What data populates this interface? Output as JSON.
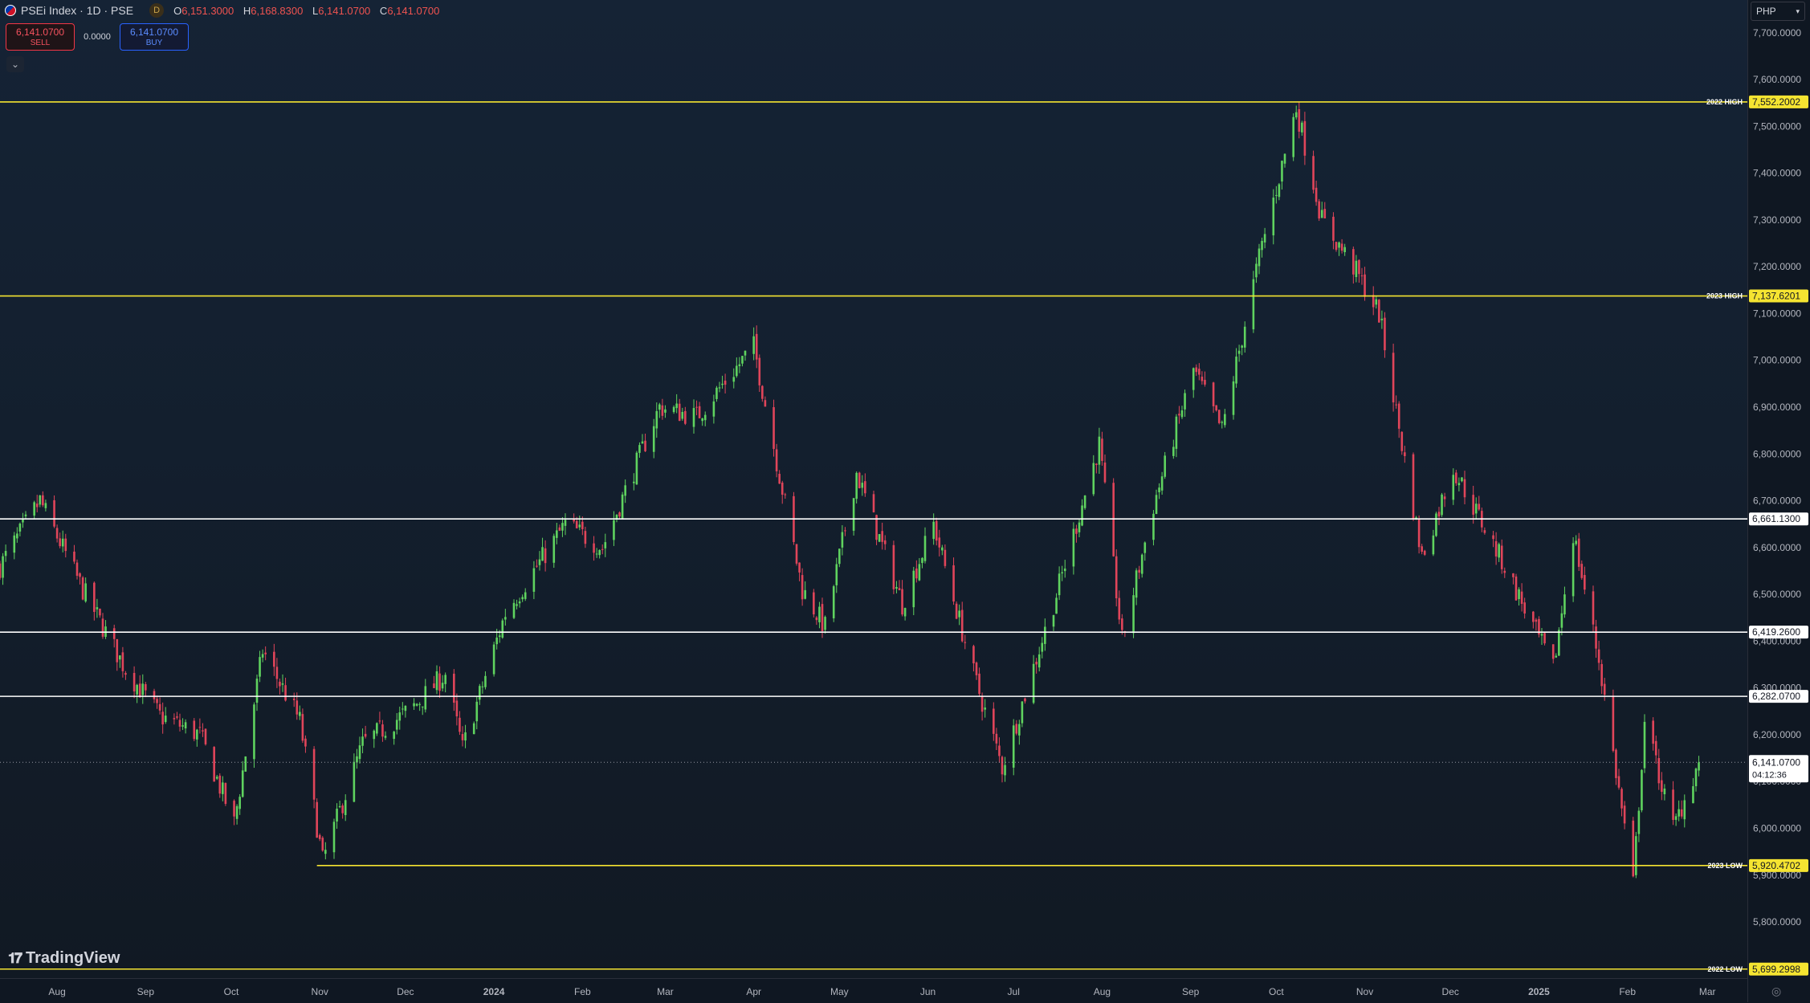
{
  "header": {
    "symbol_title": "PSEi Index · 1D · PSE",
    "interval_badge": "D",
    "ohlc": [
      {
        "key": "O",
        "value": "6,151.3000"
      },
      {
        "key": "H",
        "value": "6,168.8300"
      },
      {
        "key": "L",
        "value": "6,141.0700"
      },
      {
        "key": "C",
        "value": "6,141.0700"
      }
    ]
  },
  "trading": {
    "sell_price": "6,141.0700",
    "sell_label": "SELL",
    "spread": "0.0000",
    "buy_price": "6,141.0700",
    "buy_label": "BUY"
  },
  "currency": "PHP",
  "brand": "TradingView",
  "colors": {
    "up": "#5fd35f",
    "down": "#e0455a",
    "yellow_level": "#f5e431",
    "white_level": "#ffffff"
  },
  "chart_data": {
    "type": "candlestick",
    "ylim": [
      5680,
      7770
    ],
    "y_ticks": [
      "7,700.0000",
      "7,600.0000",
      "7,500.0000",
      "7,400.0000",
      "7,300.0000",
      "7,200.0000",
      "7,100.0000",
      "7,000.0000",
      "6,900.0000",
      "6,800.0000",
      "6,700.0000",
      "6,600.0000",
      "6,500.0000",
      "6,400.0000",
      "6,300.0000",
      "6,200.0000",
      "6,100.0000",
      "6,000.0000",
      "5,900.0000",
      "5,800.0000"
    ],
    "x_labels": [
      "Aug",
      "Sep",
      "Oct",
      "Nov",
      "Dec",
      "2024",
      "Feb",
      "Mar",
      "Apr",
      "May",
      "Jun",
      "Jul",
      "Aug",
      "Sep",
      "Oct",
      "Nov",
      "Dec",
      "2025",
      "Feb",
      "Mar"
    ],
    "x_label_dates": [
      "2023-08-01",
      "2023-09-01",
      "2023-10-01",
      "2023-11-01",
      "2023-12-01",
      "2024-01-01",
      "2024-02-01",
      "2024-03-01",
      "2024-04-01",
      "2024-05-01",
      "2024-06-01",
      "2024-07-01",
      "2024-08-01",
      "2024-09-01",
      "2024-10-01",
      "2024-11-01",
      "2024-12-01",
      "2025-01-01",
      "2025-02-01",
      "2025-03-01"
    ],
    "x_range": [
      "2023-07-12",
      "2025-03-15"
    ],
    "levels": [
      {
        "label": "2022 HIGH",
        "value": 7552.2002,
        "value_text": "7,552.2002",
        "color": "yellow",
        "start": "2023-07-12"
      },
      {
        "label": "2023 HIGH",
        "value": 7137.6201,
        "value_text": "7,137.6201",
        "color": "yellow",
        "start": "2023-07-12"
      },
      {
        "label": "",
        "value": 6661.13,
        "value_text": "6,661.1300",
        "color": "white",
        "start": "2023-07-12"
      },
      {
        "label": "",
        "value": 6419.26,
        "value_text": "6,419.2600",
        "color": "white",
        "start": "2023-07-12"
      },
      {
        "label": "",
        "value": 6282.07,
        "value_text": "6,282.0700",
        "color": "white",
        "start": "2023-07-12"
      },
      {
        "label": "2023 LOW",
        "value": 5920.4702,
        "value_text": "5,920.4702",
        "color": "yellow",
        "start": "2023-10-31"
      },
      {
        "label": "2022 LOW",
        "value": 5699.2998,
        "value_text": "5,699.2998",
        "color": "yellow",
        "start": "2023-07-12"
      }
    ],
    "last_price": {
      "value": 6141.07,
      "value_text": "6,141.0700",
      "countdown": "04:12:36"
    },
    "anchors": [
      [
        "2023-07-12",
        6560
      ],
      [
        "2023-07-26",
        6700
      ],
      [
        "2023-08-10",
        6510
      ],
      [
        "2023-08-25",
        6340
      ],
      [
        "2023-09-06",
        6240
      ],
      [
        "2023-09-20",
        6200
      ],
      [
        "2023-10-02",
        6010
      ],
      [
        "2023-10-12",
        6380
      ],
      [
        "2023-10-25",
        6230
      ],
      [
        "2023-11-02",
        5930
      ],
      [
        "2023-11-16",
        6180
      ],
      [
        "2023-12-04",
        6260
      ],
      [
        "2023-12-15",
        6330
      ],
      [
        "2023-12-21",
        6170
      ],
      [
        "2024-01-05",
        6460
      ],
      [
        "2024-01-26",
        6650
      ],
      [
        "2024-02-08",
        6600
      ],
      [
        "2024-02-28",
        6900
      ],
      [
        "2024-03-12",
        6880
      ],
      [
        "2024-04-01",
        7030
      ],
      [
        "2024-04-18",
        6510
      ],
      [
        "2024-04-26",
        6430
      ],
      [
        "2024-05-07",
        6760
      ],
      [
        "2024-05-23",
        6480
      ],
      [
        "2024-06-03",
        6650
      ],
      [
        "2024-06-17",
        6330
      ],
      [
        "2024-06-27",
        6130
      ],
      [
        "2024-07-16",
        6500
      ],
      [
        "2024-07-31",
        6820
      ],
      [
        "2024-08-08",
        6400
      ],
      [
        "2024-08-19",
        6690
      ],
      [
        "2024-09-02",
        6980
      ],
      [
        "2024-09-12",
        6850
      ],
      [
        "2024-09-25",
        7220
      ],
      [
        "2024-10-08",
        7540
      ],
      [
        "2024-10-17",
        7300
      ],
      [
        "2024-10-28",
        7200
      ],
      [
        "2024-11-06",
        7100
      ],
      [
        "2024-11-14",
        6820
      ],
      [
        "2024-11-21",
        6580
      ],
      [
        "2024-12-02",
        6770
      ],
      [
        "2024-12-20",
        6560
      ],
      [
        "2025-01-06",
        6340
      ],
      [
        "2025-01-13",
        6630
      ],
      [
        "2025-01-22",
        6360
      ],
      [
        "2025-02-03",
        5880
      ],
      [
        "2025-02-07",
        6230
      ],
      [
        "2025-02-17",
        6000
      ],
      [
        "2025-02-26",
        6141
      ]
    ]
  }
}
